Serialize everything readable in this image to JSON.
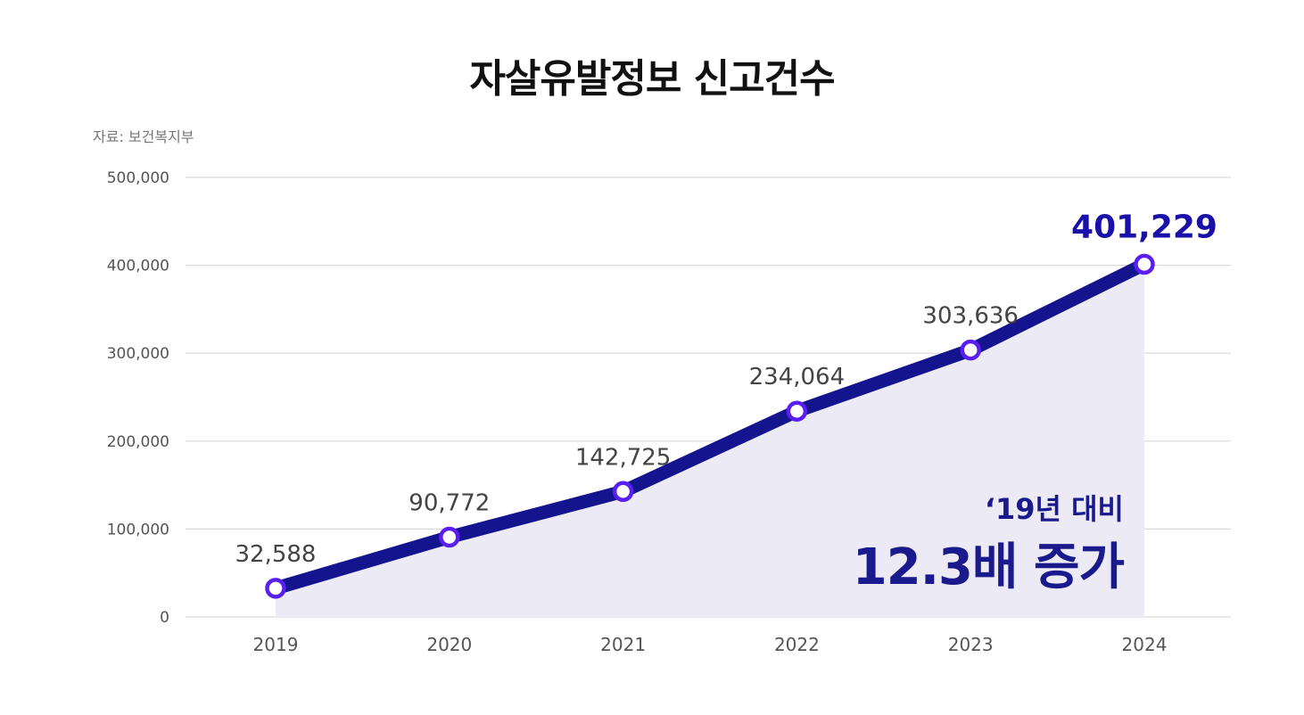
{
  "title": "자살유발정보 신고건수",
  "source": "자료: 보건복지부",
  "colors": {
    "line": "#14148f",
    "marker_stroke": "#5a1ef0",
    "marker_fill": "#ffffff",
    "area": "#ebeaf5",
    "grid": "#d9d9df",
    "highlight": "#1a0fa8"
  },
  "annotation": {
    "line1": "‘19년 대비",
    "line2": "12.3배 증가"
  },
  "chart_data": {
    "type": "area",
    "title": "자살유발정보 신고건수",
    "xlabel": "",
    "ylabel": "",
    "categories": [
      "2019",
      "2020",
      "2021",
      "2022",
      "2023",
      "2024"
    ],
    "values": [
      32588,
      90772,
      142725,
      234064,
      303636,
      401229
    ],
    "data_labels": [
      "32,588",
      "90,772",
      "142,725",
      "234,064",
      "303,636",
      "401,229"
    ],
    "yticks": [
      0,
      100000,
      200000,
      300000,
      400000,
      500000
    ],
    "ytick_labels": [
      "0",
      "100,000",
      "200,000",
      "300,000",
      "400,000",
      "500,000"
    ],
    "ylim": [
      0,
      500000
    ],
    "grid": true,
    "legend": "none"
  }
}
